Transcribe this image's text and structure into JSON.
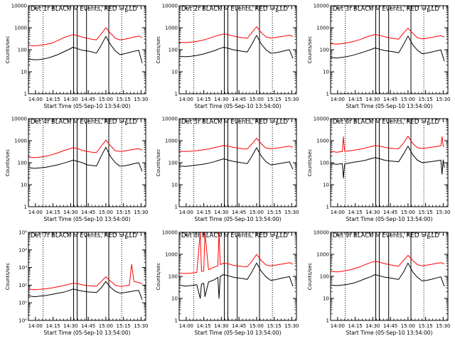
{
  "figure": {
    "background": "#ffffff",
    "axis_color": "#000000"
  },
  "common": {
    "ylabel": "Counts/sec",
    "xlabel": "Start Time (05-Sep-10 13:54:00)",
    "x_tick_labels": [
      "14:00",
      "14:15",
      "14:30",
      "14:45",
      "15:00",
      "15:15",
      "15:30"
    ],
    "x_ticks_min": [
      6,
      21,
      36,
      51,
      66,
      81,
      96
    ],
    "xlim_min": [
      0,
      100
    ],
    "event_color": "#000000",
    "lld_color": "#ff0000",
    "dotted_lines_min": [
      12.5,
      79.5
    ],
    "solid_lines_min": [
      38.5,
      41.5,
      49.5,
      68.5
    ],
    "legend_glyph": "L"
  },
  "chart_data": [
    {
      "type": "line",
      "title": "Det 1f BLACK = Events, RED = LLD",
      "scale": "log",
      "ylim": [
        1,
        10000
      ],
      "y_tick_labels": [
        "1",
        "10",
        "100",
        "1000",
        "10000"
      ],
      "x": [
        0,
        5,
        10,
        15,
        20,
        25,
        30,
        34,
        38,
        42,
        46,
        50,
        54,
        58,
        62,
        66,
        70,
        74,
        78,
        82,
        86,
        90,
        94,
        97
      ],
      "series": [
        {
          "name": "Events",
          "color": "#000000",
          "values": [
            38,
            35,
            36,
            40,
            48,
            60,
            80,
            100,
            130,
            110,
            95,
            88,
            80,
            70,
            160,
            400,
            170,
            90,
            60,
            65,
            75,
            85,
            95,
            25
          ]
        },
        {
          "name": "LLD",
          "color": "#ff0000",
          "values": [
            160,
            150,
            160,
            175,
            200,
            260,
            350,
            420,
            480,
            440,
            370,
            330,
            300,
            280,
            520,
            1000,
            560,
            330,
            280,
            300,
            330,
            380,
            420,
            360
          ]
        }
      ]
    },
    {
      "type": "line",
      "title": "Det 2f BLACK = Events, RED = LLD",
      "scale": "log",
      "ylim": [
        1,
        10000
      ],
      "y_tick_labels": [
        "1",
        "10",
        "100",
        "1000",
        "10000"
      ],
      "x": [
        0,
        5,
        10,
        15,
        20,
        25,
        30,
        34,
        38,
        42,
        46,
        50,
        54,
        58,
        62,
        66,
        70,
        74,
        78,
        82,
        86,
        90,
        94,
        97
      ],
      "series": [
        {
          "name": "Events",
          "color": "#000000",
          "values": [
            50,
            48,
            50,
            55,
            62,
            75,
            90,
            110,
            130,
            115,
            100,
            92,
            85,
            78,
            180,
            450,
            180,
            100,
            70,
            72,
            80,
            90,
            100,
            40
          ]
        },
        {
          "name": "LLD",
          "color": "#ff0000",
          "values": [
            220,
            210,
            220,
            240,
            270,
            320,
            400,
            460,
            520,
            480,
            420,
            380,
            350,
            330,
            600,
            1100,
            600,
            380,
            340,
            360,
            390,
            420,
            460,
            400
          ]
        }
      ]
    },
    {
      "type": "line",
      "title": "Det 3f BLACK = Events, RED = LLD",
      "scale": "log",
      "ylim": [
        1,
        10000
      ],
      "y_tick_labels": [
        "1",
        "10",
        "100",
        "1000",
        "10000"
      ],
      "x": [
        0,
        5,
        10,
        15,
        20,
        25,
        30,
        34,
        38,
        42,
        46,
        50,
        54,
        58,
        62,
        66,
        70,
        74,
        78,
        82,
        86,
        90,
        94,
        97
      ],
      "series": [
        {
          "name": "Events",
          "color": "#000000",
          "values": [
            45,
            42,
            45,
            50,
            58,
            70,
            85,
            100,
            120,
            105,
            92,
            86,
            80,
            72,
            165,
            420,
            170,
            95,
            66,
            70,
            78,
            88,
            98,
            30
          ]
        },
        {
          "name": "LLD",
          "color": "#ff0000",
          "values": [
            190,
            180,
            190,
            210,
            240,
            290,
            370,
            430,
            490,
            450,
            390,
            350,
            320,
            300,
            560,
            950,
            560,
            350,
            310,
            330,
            360,
            400,
            430,
            380
          ]
        }
      ]
    },
    {
      "type": "line",
      "title": "Det 4f BLACK = Events, RED = LLD",
      "scale": "log",
      "ylim": [
        1,
        10000
      ],
      "y_tick_labels": [
        "1",
        "10",
        "100",
        "1000",
        "10000"
      ],
      "x": [
        0,
        5,
        10,
        15,
        20,
        25,
        30,
        34,
        38,
        42,
        46,
        50,
        54,
        58,
        62,
        66,
        70,
        74,
        78,
        82,
        86,
        90,
        94,
        97
      ],
      "series": [
        {
          "name": "Events",
          "color": "#000000",
          "values": [
            60,
            55,
            58,
            62,
            70,
            80,
            95,
            110,
            130,
            115,
            100,
            80,
            75,
            70,
            200,
            500,
            190,
            100,
            70,
            72,
            80,
            90,
            100,
            40
          ]
        },
        {
          "name": "LLD",
          "color": "#ff0000",
          "values": [
            180,
            170,
            180,
            200,
            230,
            280,
            350,
            410,
            480,
            440,
            360,
            320,
            300,
            290,
            550,
            1050,
            580,
            350,
            320,
            340,
            370,
            400,
            430,
            380
          ]
        }
      ]
    },
    {
      "type": "line",
      "title": "Det 5f BLACK = Events, RED = LLD",
      "scale": "log",
      "ylim": [
        1,
        10000
      ],
      "y_tick_labels": [
        "1",
        "10",
        "100",
        "1000",
        "10000"
      ],
      "x": [
        0,
        5,
        10,
        15,
        20,
        25,
        30,
        34,
        38,
        42,
        46,
        50,
        54,
        58,
        62,
        66,
        70,
        74,
        78,
        82,
        86,
        90,
        94,
        97
      ],
      "series": [
        {
          "name": "Events",
          "color": "#000000",
          "values": [
            70,
            68,
            72,
            78,
            85,
            95,
            110,
            130,
            150,
            130,
            115,
            105,
            98,
            90,
            200,
            480,
            200,
            110,
            80,
            85,
            92,
            100,
            110,
            50
          ]
        },
        {
          "name": "LLD",
          "color": "#ff0000",
          "values": [
            330,
            320,
            330,
            350,
            380,
            420,
            480,
            540,
            600,
            560,
            500,
            460,
            430,
            420,
            700,
            1300,
            720,
            460,
            430,
            450,
            480,
            520,
            560,
            500
          ]
        }
      ]
    },
    {
      "type": "line",
      "title": "Det 6f BLACK = Events, RED = LLD",
      "scale": "log",
      "ylim": [
        1,
        10000
      ],
      "y_tick_labels": [
        "1",
        "10",
        "100",
        "1000",
        "10000"
      ],
      "x": [
        0,
        5,
        10,
        11,
        12,
        15,
        20,
        25,
        30,
        34,
        38,
        42,
        46,
        50,
        54,
        58,
        62,
        66,
        70,
        74,
        78,
        82,
        86,
        90,
        94,
        95,
        96,
        97
      ],
      "series": [
        {
          "name": "Events",
          "color": "#000000",
          "values": [
            90,
            85,
            90,
            20,
            88,
            95,
            105,
            115,
            130,
            150,
            170,
            150,
            130,
            120,
            115,
            110,
            240,
            560,
            230,
            130,
            100,
            105,
            112,
            120,
            130,
            30,
            135,
            60
          ]
        },
        {
          "name": "LLD",
          "color": "#ff0000",
          "values": [
            330,
            300,
            320,
            1500,
            330,
            340,
            370,
            410,
            470,
            530,
            600,
            560,
            500,
            460,
            440,
            430,
            750,
            1600,
            760,
            480,
            450,
            470,
            500,
            540,
            580,
            1500,
            560,
            540
          ]
        }
      ]
    },
    {
      "type": "line",
      "title": "Det 7f BLACK = Events, RED = LLD",
      "scale": "log",
      "ylim": [
        1,
        100000
      ],
      "y_tick_labels": [
        "10⁰",
        "10¹",
        "10²",
        "10³",
        "10⁴",
        "10⁵"
      ],
      "x": [
        0,
        5,
        10,
        15,
        20,
        25,
        30,
        34,
        38,
        42,
        46,
        50,
        54,
        58,
        62,
        66,
        70,
        74,
        78,
        82,
        86,
        88,
        90,
        94,
        97
      ],
      "series": [
        {
          "name": "Events",
          "color": "#000000",
          "values": [
            25,
            22,
            24,
            26,
            30,
            35,
            40,
            48,
            60,
            52,
            46,
            42,
            40,
            38,
            70,
            160,
            75,
            45,
            35,
            38,
            42,
            44,
            48,
            50,
            15
          ]
        },
        {
          "name": "LLD",
          "color": "#ff0000",
          "values": [
            60,
            55,
            58,
            62,
            70,
            80,
            95,
            110,
            130,
            120,
            105,
            95,
            90,
            88,
            160,
            300,
            170,
            100,
            85,
            90,
            100,
            1500,
            160,
            140,
            120
          ]
        }
      ]
    },
    {
      "type": "line",
      "title": "Det 8f BLACK = Events, RED = LLD",
      "scale": "log",
      "ylim": [
        1,
        10000
      ],
      "y_tick_labels": [
        "1",
        "10",
        "100",
        "1000",
        "10000"
      ],
      "x": [
        0,
        5,
        10,
        15,
        18,
        19,
        21,
        22,
        25,
        30,
        33,
        34,
        35,
        38,
        42,
        46,
        50,
        54,
        58,
        62,
        66,
        70,
        74,
        78,
        82,
        86,
        90,
        94,
        97
      ],
      "series": [
        {
          "name": "Events",
          "color": "#000000",
          "values": [
            40,
            36,
            38,
            42,
            10,
            45,
            48,
            12,
            55,
            70,
            90,
            10,
            100,
            120,
            105,
            92,
            85,
            80,
            72,
            160,
            400,
            170,
            95,
            66,
            70,
            80,
            88,
            98,
            35
          ]
        },
        {
          "name": "LLD",
          "color": "#ff0000",
          "values": [
            140,
            135,
            140,
            150,
            10000,
            170,
            175,
            10000,
            200,
            260,
            300,
            10000,
            340,
            400,
            370,
            320,
            300,
            280,
            270,
            480,
            1000,
            520,
            330,
            300,
            320,
            350,
            380,
            420,
            360
          ]
        }
      ]
    },
    {
      "type": "line",
      "title": "Det 9f BLACK = Events, RED = LLD",
      "scale": "log",
      "ylim": [
        1,
        10000
      ],
      "y_tick_labels": [
        "1",
        "10",
        "100",
        "1000",
        "10000"
      ],
      "x": [
        0,
        5,
        10,
        15,
        20,
        25,
        30,
        34,
        38,
        42,
        46,
        50,
        54,
        58,
        62,
        66,
        70,
        74,
        78,
        82,
        86,
        90,
        94,
        97
      ],
      "series": [
        {
          "name": "Events",
          "color": "#000000",
          "values": [
            40,
            38,
            40,
            44,
            50,
            62,
            80,
            95,
            120,
            105,
            92,
            86,
            78,
            72,
            150,
            400,
            160,
            90,
            62,
            66,
            74,
            84,
            95,
            35
          ]
        },
        {
          "name": "LLD",
          "color": "#ff0000",
          "values": [
            170,
            160,
            170,
            190,
            220,
            270,
            350,
            420,
            480,
            440,
            380,
            340,
            310,
            290,
            520,
            900,
            530,
            340,
            300,
            320,
            350,
            390,
            420,
            370
          ]
        }
      ]
    }
  ]
}
